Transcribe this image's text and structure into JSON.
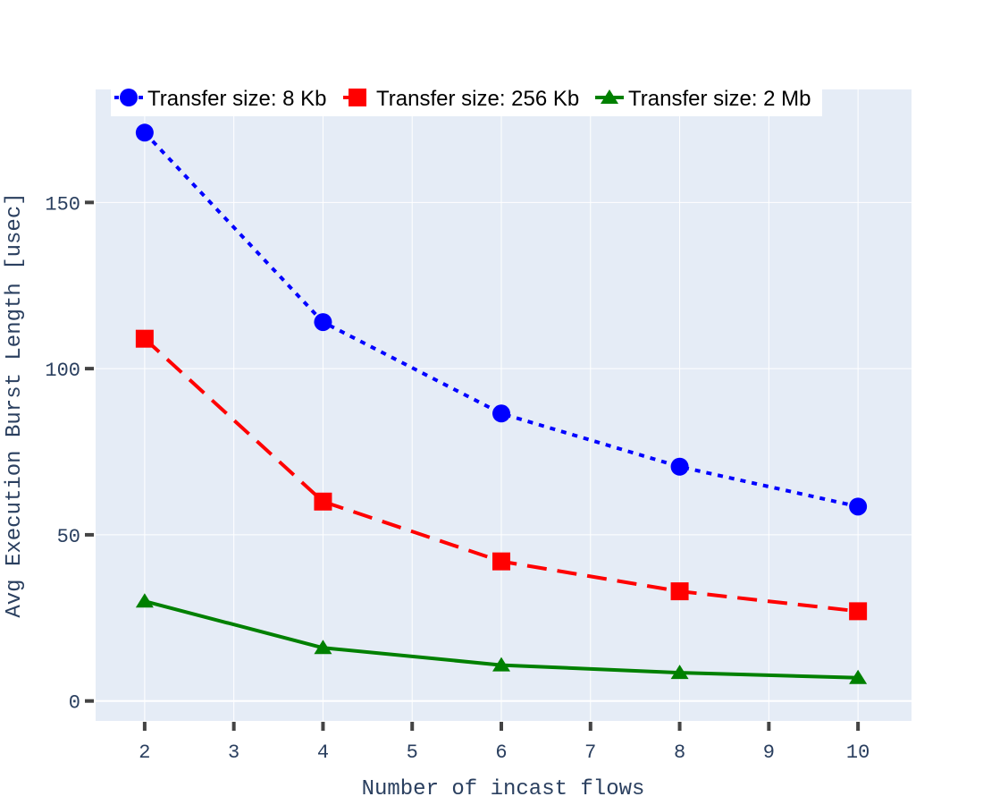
{
  "chart_data": {
    "type": "line",
    "title": "",
    "xlabel": "Number of incast flows",
    "ylabel": "Avg Execution Burst Length [usec]",
    "x": [
      2,
      4,
      6,
      8,
      10
    ],
    "xlim": [
      1.45,
      10.6
    ],
    "ylim": [
      -6,
      184
    ],
    "xticks": [
      2,
      3,
      4,
      5,
      6,
      7,
      8,
      9,
      10
    ],
    "yticks": [
      0,
      50,
      100,
      150
    ],
    "grid": true,
    "legend_position": "top",
    "plot_background": "#e5ecf6",
    "series": [
      {
        "name": "Transfer size: 8 Kb",
        "values": [
          171,
          114,
          86.5,
          70.5,
          58.5
        ],
        "color": "#0000ff",
        "marker": "circle",
        "dash": "dot"
      },
      {
        "name": "Transfer size: 256 Kb",
        "values": [
          109,
          60,
          42,
          33,
          27
        ],
        "color": "#ff0000",
        "marker": "square",
        "dash": "dash"
      },
      {
        "name": "Transfer size: 2 Mb",
        "values": [
          30,
          16,
          10.8,
          8.5,
          7
        ],
        "color": "#008000",
        "marker": "triangle-up",
        "dash": "solid"
      }
    ]
  }
}
